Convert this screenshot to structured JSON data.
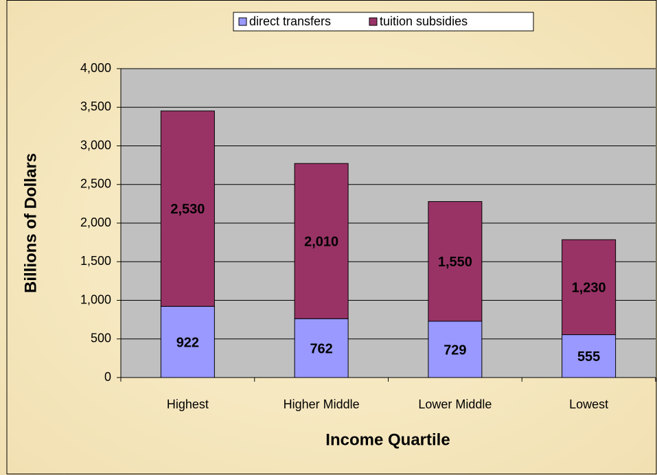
{
  "chart_data": {
    "type": "stacked_bar",
    "categories": [
      "Highest",
      "Higher Middle",
      "Lower Middle",
      "Lowest"
    ],
    "series": [
      {
        "name": "direct transfers",
        "color": "#9999ff",
        "values": [
          922,
          762,
          729,
          555
        ],
        "value_labels": [
          "922",
          "762",
          "729",
          "555"
        ]
      },
      {
        "name": "tuition subsidies",
        "color": "#993366",
        "values": [
          2530,
          2010,
          1550,
          1230
        ],
        "value_labels": [
          "2,530",
          "2,010",
          "1,550",
          "1,230"
        ]
      }
    ],
    "x_label": "Income Quartile",
    "y_label": "Billions of Dollars",
    "ylim": [
      0,
      4000
    ],
    "yticks": [
      0,
      {
        "value": 500,
        "label": "500"
      },
      {
        "value": 1000,
        "label": "1,000"
      },
      {
        "value": 1500,
        "label": "1,500"
      },
      {
        "value": 2000,
        "label": "2,000"
      },
      {
        "value": 2500,
        "label": "2,500"
      },
      {
        "value": 3000,
        "label": "3,000"
      },
      {
        "value": 3500,
        "label": "3,500"
      },
      {
        "value": 4000,
        "label": "4,000"
      }
    ],
    "grid": true,
    "legend": "top"
  }
}
